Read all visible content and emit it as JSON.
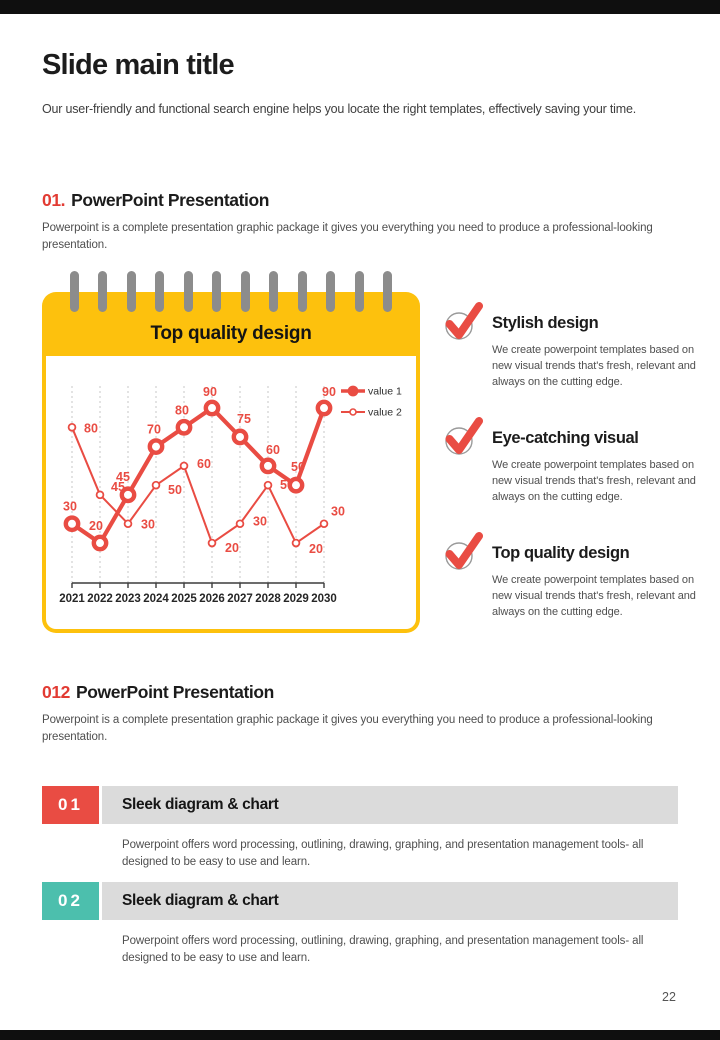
{
  "colors": {
    "accent_red": "#E94C43",
    "accent_yellow": "#FDC10D",
    "accent_teal": "#4CBFAD",
    "ring_gray": "#8C8C8C",
    "bar_gray": "#DBDBDB"
  },
  "header": {
    "title": "Slide main title",
    "subtitle": "Our user-friendly and functional search engine helps you locate the right templates, effectively saving your time."
  },
  "section1": {
    "number": "01.",
    "title": "PowerPoint Presentation",
    "description": "Powerpoint is a complete presentation graphic package it gives you everything you need to produce a professional-looking presentation."
  },
  "notepad": {
    "title": "Top quality design"
  },
  "chart_data": {
    "type": "line",
    "title": "Top quality design",
    "categories": [
      "2021",
      "2022",
      "2023",
      "2024",
      "2025",
      "2026",
      "2027",
      "2028",
      "2029",
      "2030"
    ],
    "series": [
      {
        "name": "value 1",
        "values": [
          30,
          20,
          45,
          70,
          80,
          90,
          75,
          60,
          50,
          90
        ],
        "style": "thick-line-large-ring-markers",
        "label_anchor": "middle",
        "label_dx": [
          -2,
          -4,
          -5,
          -2,
          -2,
          -2,
          4,
          5,
          2,
          5
        ],
        "label_dy": [
          -13,
          -13,
          -14,
          -13,
          -13,
          -12,
          -14,
          -12,
          -14,
          -12
        ]
      },
      {
        "name": "value 2",
        "values": [
          80,
          45,
          30,
          50,
          60,
          20,
          30,
          50,
          20,
          30
        ],
        "style": "thin-line-small-open-markers",
        "label_anchor": "start",
        "label_dx": [
          12,
          11,
          13,
          12,
          13,
          13,
          13,
          12,
          13,
          7
        ],
        "label_dy": [
          5,
          -4,
          5,
          9,
          2,
          9,
          2,
          4,
          10,
          -8
        ]
      }
    ],
    "color": "#E94C43",
    "ylim": [
      0,
      100
    ],
    "y_axis": "hidden",
    "grid": "vertical-dashed",
    "legend_position": "top-right",
    "value_labels": true
  },
  "features": [
    {
      "icon": "check-icon",
      "title": "Stylish design",
      "description": "We create powerpoint templates based on new visual trends that's fresh, relevant and always on the cutting edge."
    },
    {
      "icon": "check-icon",
      "title": "Eye-catching visual",
      "description": "We create powerpoint templates based on new visual trends that's fresh, relevant and always on the cutting edge."
    },
    {
      "icon": "check-icon",
      "title": "Top quality design",
      "description": "We create powerpoint templates based on new visual trends that's fresh, relevant and always on the cutting edge."
    }
  ],
  "section2": {
    "number": "012",
    "title": "PowerPoint Presentation",
    "description": "Powerpoint is a complete presentation graphic package it gives you everything you need to produce a professional-looking presentation."
  },
  "list_items": [
    {
      "number": "01",
      "accent": "#E94C43",
      "title": "Sleek diagram & chart",
      "description": "Powerpoint offers word processing, outlining, drawing, graphing, and presentation management tools- all designed to be easy to use and learn."
    },
    {
      "number": "02",
      "accent": "#4CBFAD",
      "title": "Sleek diagram & chart",
      "description": "Powerpoint offers word processing, outlining, drawing, graphing, and presentation management tools- all designed to be easy to use and learn."
    }
  ],
  "footer": {
    "page_number": "22"
  }
}
